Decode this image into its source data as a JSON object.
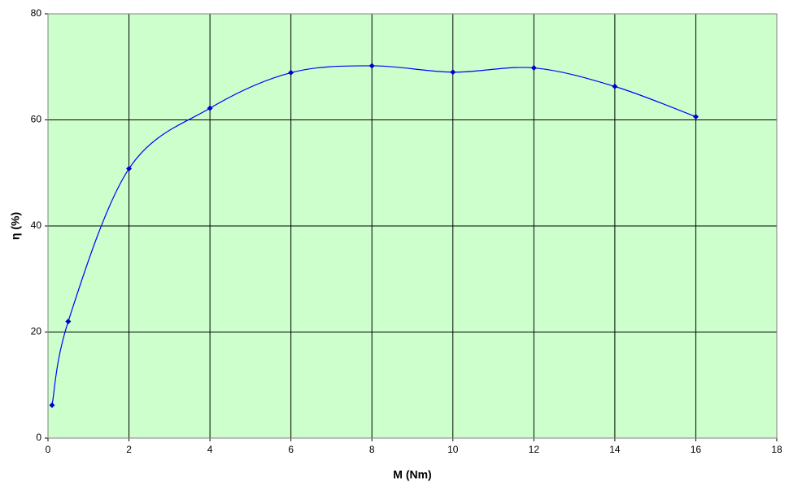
{
  "chart_data": {
    "type": "scatter",
    "smooth": true,
    "x": [
      0.1,
      0.5,
      2,
      4,
      6,
      8,
      10,
      12,
      14,
      16
    ],
    "values": [
      6.2,
      22,
      50.8,
      62.2,
      68.9,
      70.2,
      69,
      69.8,
      66.3,
      60.6
    ],
    "color": "#0000cc",
    "line_color": "#0000ff",
    "plot_background": "#ccffcc",
    "xlabel": "M (Nm)",
    "ylabel": "η (%)",
    "xlim": [
      0,
      18
    ],
    "xticks": [
      0,
      2,
      4,
      6,
      8,
      10,
      12,
      14,
      16,
      18
    ],
    "ylim": [
      0,
      80
    ],
    "yticks": [
      0,
      20,
      40,
      60,
      80
    ],
    "grid": true
  }
}
